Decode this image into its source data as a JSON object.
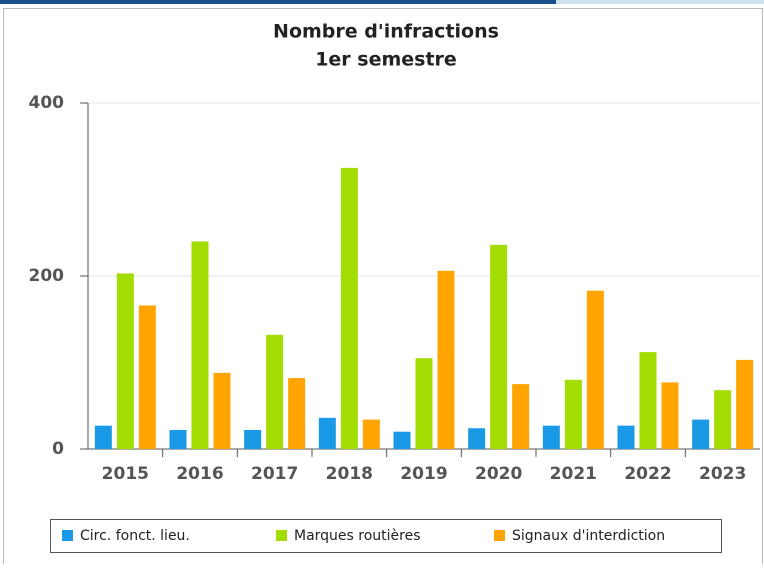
{
  "chart_data": {
    "type": "bar",
    "title": "Nombre d'infractions",
    "subtitle": "1er semestre",
    "categories": [
      "2015",
      "2016",
      "2017",
      "2018",
      "2019",
      "2020",
      "2021",
      "2022",
      "2023"
    ],
    "series": [
      {
        "name": "Circ. fonct. lieu.",
        "color": "#1a9ae6",
        "values": [
          27,
          22,
          22,
          36,
          20,
          24,
          27,
          27,
          34
        ]
      },
      {
        "name": "Marques routières",
        "color": "#a2dc00",
        "values": [
          203,
          240,
          132,
          325,
          105,
          236,
          80,
          112,
          68
        ]
      },
      {
        "name": "Signaux d'interdiction",
        "color": "#ffa400",
        "values": [
          166,
          88,
          82,
          34,
          206,
          75,
          183,
          77,
          103
        ]
      }
    ],
    "ylim": [
      0,
      400
    ],
    "yticks": [
      0,
      200,
      400
    ],
    "grid": true
  }
}
